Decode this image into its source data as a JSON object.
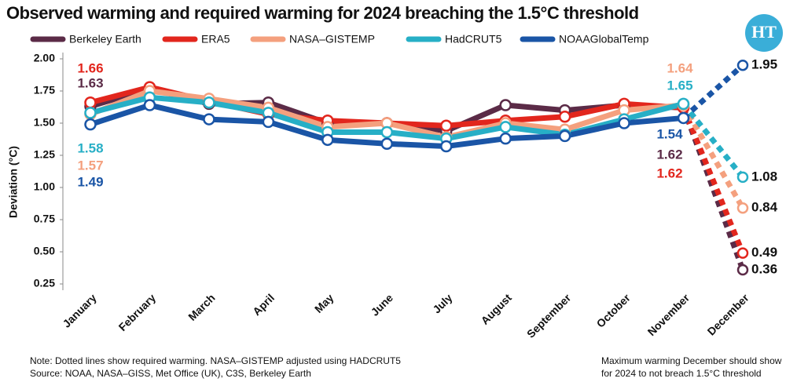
{
  "chart_data": {
    "type": "line",
    "title": "Observed warming and required warming for 2024 breaching the 1.5°C threshold",
    "logo": "HT",
    "y_label": "Deviation (°C)",
    "categories": [
      "January",
      "February",
      "March",
      "April",
      "May",
      "June",
      "July",
      "August",
      "September",
      "October",
      "November",
      "December"
    ],
    "ylim": [
      0.25,
      2.0
    ],
    "yticks": [
      {
        "value": 0.25,
        "label": "0.25"
      },
      {
        "value": 0.5,
        "label": "0.50"
      },
      {
        "value": 0.75,
        "label": "0.75"
      },
      {
        "value": 1.0,
        "label": "1.00"
      },
      {
        "value": 1.25,
        "label": "1.25"
      },
      {
        "value": 1.5,
        "label": "1.50"
      },
      {
        "value": 1.75,
        "label": "1.75"
      },
      {
        "value": 2.0,
        "label": "2.00"
      }
    ],
    "series": [
      {
        "name": "Berkeley Earth",
        "color": "#5b2b47",
        "values": [
          1.63,
          1.77,
          1.65,
          1.66,
          1.5,
          1.5,
          1.44,
          1.64,
          1.6,
          1.64,
          1.62,
          0.36
        ],
        "value_labels": [
          "1.63",
          null,
          null,
          null,
          null,
          null,
          null,
          null,
          null,
          null,
          "1.62",
          "0.36"
        ]
      },
      {
        "name": "ERA5",
        "color": "#e2261d",
        "values": [
          1.66,
          1.78,
          1.67,
          1.57,
          1.52,
          1.5,
          1.48,
          1.52,
          1.55,
          1.65,
          1.62,
          0.49
        ],
        "value_labels": [
          "1.66",
          null,
          null,
          null,
          null,
          null,
          null,
          null,
          null,
          null,
          "1.62",
          "0.49"
        ]
      },
      {
        "name": "NASA–GISTEMP",
        "color": "#f4a07e",
        "values": [
          1.57,
          1.75,
          1.69,
          1.62,
          1.47,
          1.5,
          1.39,
          1.5,
          1.45,
          1.6,
          1.64,
          0.84
        ],
        "value_labels": [
          "1.57",
          null,
          null,
          null,
          null,
          null,
          null,
          null,
          null,
          null,
          "1.64",
          "0.84"
        ]
      },
      {
        "name": "HadCRUT5",
        "color": "#27afc6",
        "values": [
          1.58,
          1.7,
          1.66,
          1.58,
          1.43,
          1.43,
          1.38,
          1.47,
          1.41,
          1.53,
          1.65,
          1.08
        ],
        "value_labels": [
          "1.58",
          null,
          null,
          null,
          null,
          null,
          null,
          null,
          null,
          null,
          "1.65",
          "1.08"
        ]
      },
      {
        "name": "NOAAGlobalTemp",
        "color": "#1a55a6",
        "values": [
          1.49,
          1.64,
          1.53,
          1.51,
          1.37,
          1.34,
          1.32,
          1.38,
          1.4,
          1.5,
          1.54,
          1.95
        ],
        "value_labels": [
          "1.49",
          null,
          null,
          null,
          null,
          null,
          null,
          null,
          null,
          null,
          "1.54",
          "1.95"
        ]
      }
    ],
    "legend": "top",
    "notes": [
      "Note: Dotted lines show required warming. NASA–GISTEMP adjusted using HADCRUT5",
      "Source: NOAA, NASA–GISS, Met Office (UK), C3S, Berkeley Earth"
    ],
    "side_note": [
      "Maximum warming December should show",
      "for 2024 to not breach 1.5°C threshold"
    ]
  }
}
